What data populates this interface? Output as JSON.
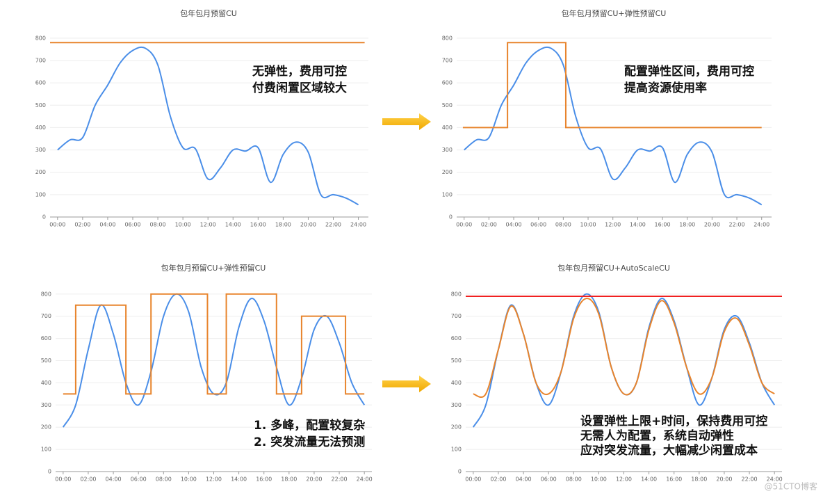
{
  "chart_data": [
    {
      "type": "line",
      "title": "包年包月预留CU",
      "annotations": [
        "无弹性，费用可控",
        "付费闲置区域较大"
      ],
      "xlim": [
        -0.6,
        24.8
      ],
      "ylim": [
        0,
        840
      ],
      "grid": true,
      "xticks": [
        {
          "value": 0,
          "label": "00:00"
        },
        {
          "value": 2,
          "label": "02:00"
        },
        {
          "value": 4,
          "label": "04:00"
        },
        {
          "value": 6,
          "label": "06:00"
        },
        {
          "value": 8,
          "label": "08:00"
        },
        {
          "value": 10,
          "label": "10:00"
        },
        {
          "value": 12,
          "label": "12:00"
        },
        {
          "value": 14,
          "label": "14:00"
        },
        {
          "value": 16,
          "label": "16:00"
        },
        {
          "value": 18,
          "label": "18:00"
        },
        {
          "value": 20,
          "label": "20:00"
        },
        {
          "value": 22,
          "label": "22:00"
        },
        {
          "value": 24,
          "label": "24:00"
        }
      ],
      "yticks": [
        0,
        100,
        200,
        300,
        400,
        500,
        600,
        700,
        800
      ],
      "series": [
        {
          "color": "#4a8ee8",
          "smooth": true,
          "x": [
            0,
            1,
            2,
            3,
            4,
            5,
            6,
            7,
            8,
            9,
            10,
            11,
            12,
            13,
            14,
            15,
            16,
            17,
            18,
            19,
            20,
            21,
            22,
            23,
            24
          ],
          "values": [
            300,
            345,
            355,
            500,
            590,
            690,
            745,
            755,
            680,
            450,
            310,
            305,
            170,
            220,
            300,
            295,
            310,
            155,
            280,
            335,
            290,
            100,
            100,
            85,
            55
          ]
        },
        {
          "color": "#e8842c",
          "smooth": false,
          "x": [
            -0.6,
            24.5
          ],
          "values": [
            780,
            780
          ]
        }
      ]
    },
    {
      "type": "line",
      "title": "包年包月预留CU+弹性预留CU",
      "annotations": [
        "配置弹性区间，费用可控",
        "提高资源使用率"
      ],
      "xlim": [
        -0.6,
        24.8
      ],
      "ylim": [
        0,
        840
      ],
      "grid": true,
      "xticks": [
        {
          "value": 0,
          "label": "00:00"
        },
        {
          "value": 2,
          "label": "02:00"
        },
        {
          "value": 4,
          "label": "04:00"
        },
        {
          "value": 6,
          "label": "06:00"
        },
        {
          "value": 8,
          "label": "08:00"
        },
        {
          "value": 10,
          "label": "10:00"
        },
        {
          "value": 12,
          "label": "12:00"
        },
        {
          "value": 14,
          "label": "14:00"
        },
        {
          "value": 16,
          "label": "16:00"
        },
        {
          "value": 18,
          "label": "18:00"
        },
        {
          "value": 20,
          "label": "20:00"
        },
        {
          "value": 22,
          "label": "22:00"
        },
        {
          "value": 24,
          "label": "24:00"
        }
      ],
      "yticks": [
        0,
        100,
        200,
        300,
        400,
        500,
        600,
        700,
        800
      ],
      "series": [
        {
          "color": "#4a8ee8",
          "smooth": true,
          "x": [
            0,
            1,
            2,
            3,
            4,
            5,
            6,
            7,
            8,
            9,
            10,
            11,
            12,
            13,
            14,
            15,
            16,
            17,
            18,
            19,
            20,
            21,
            22,
            23,
            24
          ],
          "values": [
            300,
            345,
            355,
            500,
            590,
            690,
            745,
            755,
            680,
            450,
            310,
            305,
            170,
            220,
            300,
            295,
            310,
            155,
            280,
            335,
            290,
            100,
            100,
            85,
            55
          ]
        },
        {
          "color": "#e8842c",
          "smooth": false,
          "x": [
            -0.1,
            3.5,
            3.5,
            8.2,
            8.2,
            24
          ],
          "values": [
            400,
            400,
            780,
            780,
            400,
            400
          ]
        }
      ]
    },
    {
      "type": "line",
      "title": "包年包月预留CU+弹性预留CU",
      "annotations": [
        "1. 多峰，配置较复杂",
        "2. 突发流量无法预测"
      ],
      "xlim": [
        -0.6,
        24.6
      ],
      "ylim": [
        0,
        840
      ],
      "grid": true,
      "xticks": [
        {
          "value": 0,
          "label": "00:00"
        },
        {
          "value": 2,
          "label": "02:00"
        },
        {
          "value": 4,
          "label": "04:00"
        },
        {
          "value": 6,
          "label": "06:00"
        },
        {
          "value": 8,
          "label": "08:00"
        },
        {
          "value": 10,
          "label": "10:00"
        },
        {
          "value": 12,
          "label": "12:00"
        },
        {
          "value": 14,
          "label": "14:00"
        },
        {
          "value": 16,
          "label": "16:00"
        },
        {
          "value": 18,
          "label": "18:00"
        },
        {
          "value": 20,
          "label": "20:00"
        },
        {
          "value": 22,
          "label": "22:00"
        },
        {
          "value": 24,
          "label": "24:00"
        }
      ],
      "yticks": [
        0,
        100,
        200,
        300,
        400,
        500,
        600,
        700,
        800
      ],
      "series": [
        {
          "color": "#4a8ee8",
          "smooth": true,
          "x": [
            0,
            1,
            2,
            3,
            4,
            5,
            6,
            7,
            8,
            9,
            10,
            11,
            12,
            13,
            14,
            15,
            16,
            17,
            18,
            19,
            20,
            21,
            22,
            23,
            24
          ],
          "values": [
            200,
            300,
            550,
            750,
            620,
            400,
            300,
            450,
            700,
            800,
            720,
            470,
            350,
            400,
            650,
            780,
            680,
            470,
            300,
            420,
            640,
            700,
            580,
            400,
            300
          ]
        },
        {
          "color": "#e8842c",
          "smooth": false,
          "x": [
            0,
            1,
            1,
            5,
            5,
            7,
            7,
            11.5,
            11.5,
            13,
            13,
            17,
            17,
            19,
            19,
            22.5,
            22.5,
            24
          ],
          "values": [
            350,
            350,
            750,
            750,
            350,
            350,
            800,
            800,
            350,
            350,
            800,
            800,
            350,
            350,
            700,
            700,
            350,
            350
          ]
        }
      ]
    },
    {
      "type": "line",
      "title": "包年包月预留CU+AutoScaleCU",
      "annotations": [
        "设置弹性上限+时间，保持费用可控",
        "无需人为配置，系统自动弹性",
        "应对突发流量，大幅减少闲置成本"
      ],
      "watermark": "@51CTO博客",
      "xlim": [
        -0.6,
        24.6
      ],
      "ylim": [
        0,
        840
      ],
      "grid": true,
      "xticks": [
        {
          "value": 0,
          "label": "00:00"
        },
        {
          "value": 2,
          "label": "02:00"
        },
        {
          "value": 4,
          "label": "04:00"
        },
        {
          "value": 6,
          "label": "06:00"
        },
        {
          "value": 8,
          "label": "08:00"
        },
        {
          "value": 10,
          "label": "10:00"
        },
        {
          "value": 12,
          "label": "12:00"
        },
        {
          "value": 14,
          "label": "14:00"
        },
        {
          "value": 16,
          "label": "16:00"
        },
        {
          "value": 18,
          "label": "18:00"
        },
        {
          "value": 20,
          "label": "20:00"
        },
        {
          "value": 22,
          "label": "22:00"
        },
        {
          "value": 24,
          "label": "24:00"
        }
      ],
      "yticks": [
        0,
        100,
        200,
        300,
        400,
        500,
        600,
        700,
        800
      ],
      "series": [
        {
          "color": "#4a8ee8",
          "smooth": true,
          "x": [
            0,
            1,
            2,
            3,
            4,
            5,
            6,
            7,
            8,
            9,
            10,
            11,
            12,
            13,
            14,
            15,
            16,
            17,
            18,
            19,
            20,
            21,
            22,
            23,
            24
          ],
          "values": [
            200,
            300,
            550,
            750,
            620,
            400,
            300,
            450,
            700,
            800,
            720,
            470,
            350,
            400,
            650,
            780,
            680,
            470,
            300,
            420,
            640,
            700,
            580,
            400,
            300
          ]
        },
        {
          "color": "#e8842c",
          "smooth": true,
          "x": [
            0,
            1,
            2,
            3,
            4,
            5,
            6,
            7,
            8,
            9,
            10,
            11,
            12,
            13,
            14,
            15,
            16,
            17,
            18,
            19,
            20,
            21,
            22,
            23,
            24
          ],
          "values": [
            350,
            350,
            550,
            745,
            620,
            400,
            350,
            450,
            690,
            780,
            710,
            470,
            350,
            400,
            640,
            770,
            670,
            470,
            350,
            420,
            630,
            690,
            570,
            400,
            350
          ]
        },
        {
          "color": "#f02020",
          "smooth": false,
          "x": [
            -0.6,
            24.6
          ],
          "values": [
            790,
            790
          ]
        }
      ]
    }
  ]
}
